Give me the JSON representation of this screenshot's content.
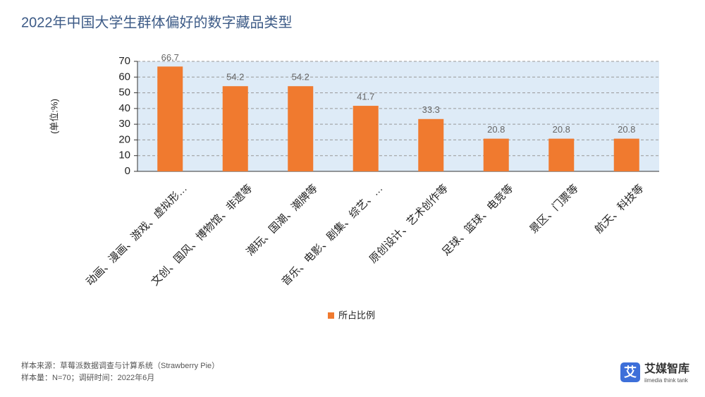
{
  "chart_data": {
    "type": "bar",
    "title": "2022年中国大学生群体偏好的数字藏品类型",
    "y_label": "(单位:%)",
    "categories": [
      "动画、漫画、游戏、虚拟形…",
      "文创、国风、博物馆、非遗等",
      "潮玩、国潮、潮牌等",
      "音乐、电影、剧集、综艺、…",
      "原创设计、艺术创作等",
      "足球、篮球、电竞等",
      "景区、门票等",
      "航天、科技等"
    ],
    "series": [
      {
        "name": "所占比例",
        "color": "#f07a2f",
        "values": [
          66.7,
          54.2,
          54.2,
          41.7,
          33.3,
          20.8,
          20.8,
          20.8
        ]
      }
    ],
    "ylim": [
      0,
      70
    ],
    "yticks": [
      0,
      10,
      20,
      30,
      40,
      50,
      60,
      70
    ],
    "grid": true
  },
  "notes": [
    "样本来源：草莓派数据调查与计算系统（Strawberry Pie）",
    "样本量：N=70；调研时间：2022年6月"
  ],
  "logo": {
    "mark": "艾",
    "name": "艾媒智库",
    "tagline": "iimedia think tank"
  }
}
